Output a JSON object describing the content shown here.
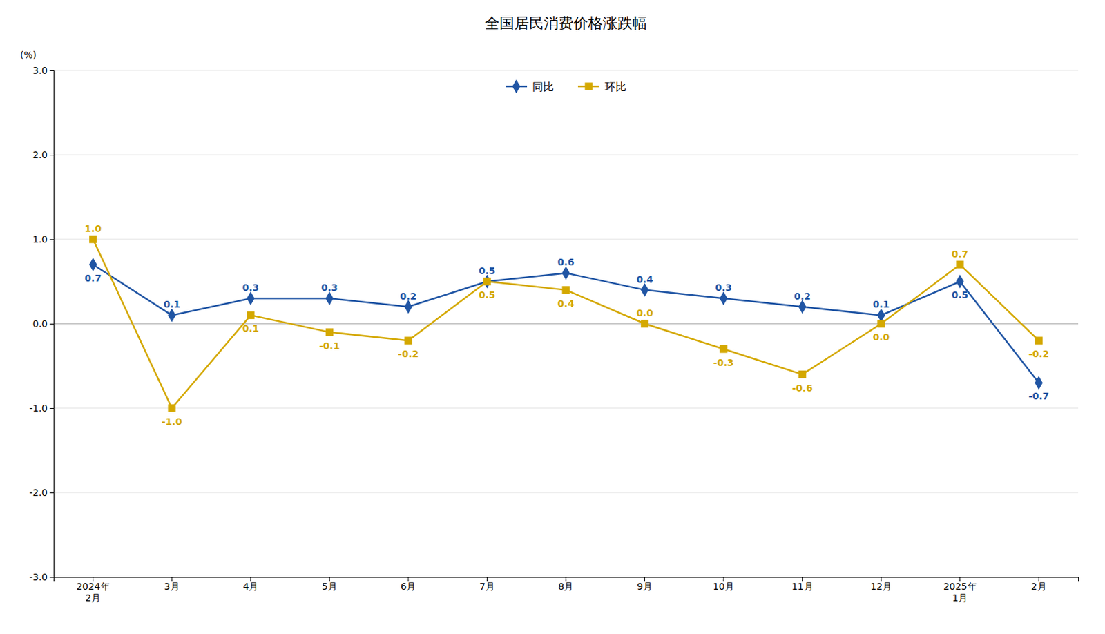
{
  "chart_data": {
    "type": "line",
    "title": "全国居民消费价格涨跌幅",
    "y_label": "(%)",
    "categories": [
      "2024年\n2月",
      "3月",
      "4月",
      "5月",
      "6月",
      "7月",
      "8月",
      "9月",
      "10月",
      "11月",
      "12月",
      "2025年\n1月",
      "2月"
    ],
    "series": [
      {
        "name": "同比",
        "color": "#2055a4",
        "marker": "diamond",
        "values": [
          0.7,
          0.1,
          0.3,
          0.3,
          0.2,
          0.5,
          0.6,
          0.4,
          0.3,
          0.2,
          0.1,
          0.5,
          -0.7
        ]
      },
      {
        "name": "环比",
        "color": "#d4a800",
        "marker": "square",
        "values": [
          1.0,
          -1.0,
          0.1,
          -0.1,
          -0.2,
          0.5,
          0.4,
          0.0,
          -0.3,
          -0.6,
          0.0,
          0.7,
          -0.2
        ],
        "value_labels": [
          "1.0",
          "-1.0",
          "0.1",
          "-0.1",
          "-0.2",
          "0.5",
          "0.4",
          "0.0",
          "-0.3",
          "-0.6",
          "0.0",
          "0.7",
          "-0.2"
        ]
      }
    ],
    "ylim": [
      -3.0,
      3.0
    ],
    "yticks": [
      {
        "value": -3.0,
        "label": "-3.0"
      },
      {
        "value": -2.0,
        "label": "-2.0"
      },
      {
        "value": -1.0,
        "label": "-1.0"
      },
      {
        "value": 0.0,
        "label": "0.0"
      },
      {
        "value": 1.0,
        "label": "1.0"
      },
      {
        "value": 2.0,
        "label": "2.0"
      },
      {
        "value": 3.0,
        "label": "3.0"
      }
    ],
    "grid": true,
    "legend": "top",
    "data_labels": true
  }
}
